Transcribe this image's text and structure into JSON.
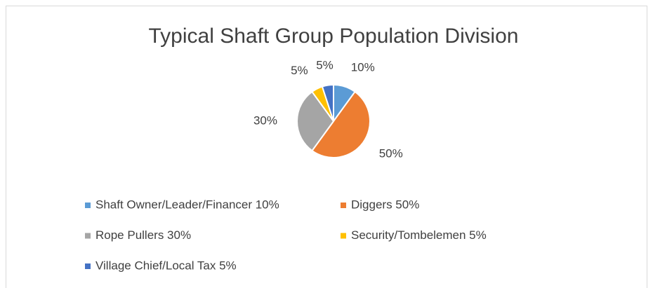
{
  "chart_data": {
    "type": "pie",
    "title": "Typical Shaft Group Population Division",
    "categories": [
      "Shaft Owner/Leader/Financer 10%",
      "Diggers 50%",
      "Rope Pullers 30%",
      "Security/Tombelemen 5%",
      "Village Chief/Local Tax 5%"
    ],
    "values": [
      10,
      50,
      30,
      5,
      5
    ],
    "value_labels": [
      "10%",
      "50%",
      "30%",
      "5%",
      "5%"
    ],
    "colors": [
      "#5b9bd5",
      "#ed7d31",
      "#a5a5a5",
      "#ffc000",
      "#4472c4"
    ],
    "legend": "bottom"
  }
}
